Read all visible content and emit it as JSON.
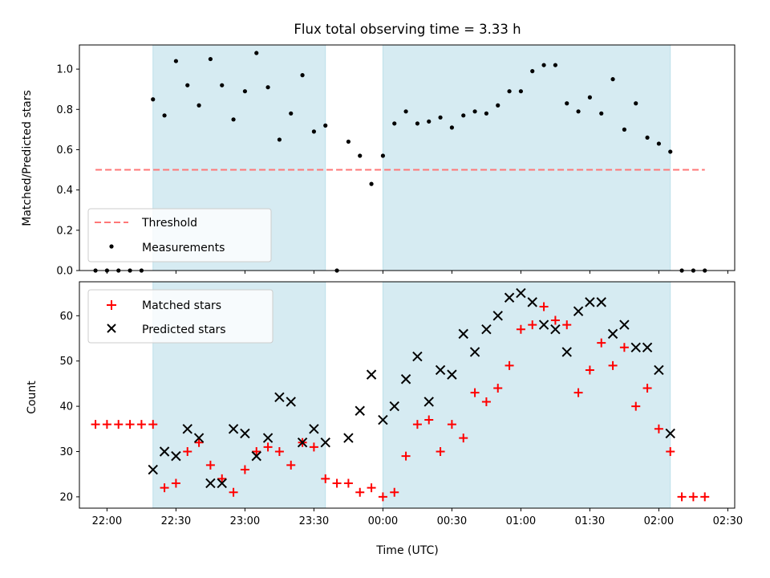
{
  "chart_data": [
    {
      "type": "scatter",
      "title": "Flux total observing time = 3.33 h",
      "xlabel": "",
      "ylabel": "Matched/Predicted stars",
      "ylim": [
        0,
        1.12
      ],
      "yticks": [
        0.0,
        0.2,
        0.4,
        0.6,
        0.8,
        1.0
      ],
      "ytick_labels": [
        "0.0",
        "0.2",
        "0.4",
        "0.6",
        "0.8",
        "1.0"
      ],
      "xlim": [
        "21:48",
        "02:33"
      ],
      "grid": false,
      "legend": "lower-left",
      "shaded_intervals": [
        [
          "22:20",
          "23:35"
        ],
        [
          "00:00",
          "02:05"
        ]
      ],
      "threshold": {
        "name": "Threshold",
        "value": 0.5,
        "x_range": [
          "21:55",
          "02:20"
        ],
        "color": "#ff7777"
      },
      "series": [
        {
          "name": "Measurements",
          "color": "#000000",
          "x": [
            "21:55",
            "22:00",
            "22:05",
            "22:10",
            "22:15",
            "22:20",
            "22:25",
            "22:30",
            "22:35",
            "22:40",
            "22:45",
            "22:50",
            "22:55",
            "23:00",
            "23:05",
            "23:10",
            "23:15",
            "23:20",
            "23:25",
            "23:30",
            "23:35",
            "23:40",
            "23:45",
            "23:50",
            "23:55",
            "00:00",
            "00:05",
            "00:10",
            "00:15",
            "00:20",
            "00:25",
            "00:30",
            "00:35",
            "00:40",
            "00:45",
            "00:50",
            "00:55",
            "01:00",
            "01:05",
            "01:10",
            "01:15",
            "01:20",
            "01:25",
            "01:30",
            "01:35",
            "01:40",
            "01:45",
            "01:50",
            "01:55",
            "02:00",
            "02:05",
            "02:10",
            "02:15",
            "02:20"
          ],
          "y": [
            0.0,
            0.0,
            0.0,
            0.0,
            0.0,
            0.85,
            0.77,
            1.04,
            0.92,
            0.82,
            1.05,
            0.92,
            0.75,
            0.89,
            1.08,
            0.91,
            0.65,
            0.78,
            0.97,
            0.69,
            0.72,
            0.0,
            0.64,
            0.57,
            0.43,
            0.57,
            0.73,
            0.79,
            0.73,
            0.74,
            0.76,
            0.71,
            0.77,
            0.79,
            0.78,
            0.82,
            0.89,
            0.89,
            0.99,
            1.02,
            1.02,
            0.83,
            0.79,
            0.86,
            0.78,
            0.95,
            0.7,
            0.83,
            0.66,
            0.63,
            0.59,
            0.0,
            0.0,
            0.0
          ]
        }
      ]
    },
    {
      "type": "scatter",
      "title": "",
      "xlabel": "Time (UTC)",
      "ylabel": "Count",
      "ylim": [
        17.5,
        67.5
      ],
      "yticks": [
        20,
        30,
        40,
        50,
        60
      ],
      "ytick_labels": [
        "20",
        "30",
        "40",
        "50",
        "60"
      ],
      "xlim": [
        "21:48",
        "02:33"
      ],
      "xticks": [
        "22:00",
        "22:30",
        "23:00",
        "23:30",
        "00:00",
        "00:30",
        "01:00",
        "01:30",
        "02:00",
        "02:30"
      ],
      "grid": false,
      "legend": "top-left",
      "shaded_intervals": [
        [
          "22:20",
          "23:35"
        ],
        [
          "00:00",
          "02:05"
        ]
      ],
      "series": [
        {
          "name": "Matched stars",
          "marker": "plus",
          "color": "#ff0000",
          "x": [
            "21:55",
            "22:00",
            "22:05",
            "22:10",
            "22:15",
            "22:20",
            "22:25",
            "22:30",
            "22:35",
            "22:40",
            "22:45",
            "22:50",
            "22:55",
            "23:00",
            "23:05",
            "23:10",
            "23:15",
            "23:20",
            "23:25",
            "23:30",
            "23:35",
            "23:40",
            "23:45",
            "23:50",
            "23:55",
            "00:00",
            "00:05",
            "00:10",
            "00:15",
            "00:20",
            "00:25",
            "00:30",
            "00:35",
            "00:40",
            "00:45",
            "00:50",
            "00:55",
            "01:00",
            "01:05",
            "01:10",
            "01:15",
            "01:20",
            "01:25",
            "01:30",
            "01:35",
            "01:40",
            "01:45",
            "01:50",
            "01:55",
            "02:00",
            "02:05",
            "02:10",
            "02:15",
            "02:20"
          ],
          "y": [
            36,
            36,
            36,
            36,
            36,
            36,
            22,
            23,
            30,
            32,
            27,
            24,
            21,
            26,
            30,
            31,
            30,
            27,
            32,
            31,
            24,
            23,
            23,
            21,
            22,
            20,
            21,
            29,
            36,
            37,
            30,
            36,
            33,
            43,
            41,
            44,
            49,
            57,
            58,
            62,
            59,
            58,
            43,
            48,
            54,
            49,
            53,
            40,
            44,
            35,
            30,
            20,
            20,
            20
          ]
        },
        {
          "name": "Predicted stars",
          "marker": "x",
          "color": "#000000",
          "x": [
            "22:20",
            "22:25",
            "22:30",
            "22:35",
            "22:40",
            "22:45",
            "22:50",
            "22:55",
            "23:00",
            "23:05",
            "23:10",
            "23:15",
            "23:20",
            "23:25",
            "23:30",
            "23:35",
            "23:45",
            "23:50",
            "23:55",
            "00:00",
            "00:05",
            "00:10",
            "00:15",
            "00:20",
            "00:25",
            "00:30",
            "00:35",
            "00:40",
            "00:45",
            "00:50",
            "00:55",
            "01:00",
            "01:05",
            "01:10",
            "01:15",
            "01:20",
            "01:25",
            "01:30",
            "01:35",
            "01:40",
            "01:45",
            "01:50",
            "01:55",
            "02:00",
            "02:05"
          ],
          "y": [
            26,
            30,
            29,
            35,
            33,
            23,
            23,
            35,
            34,
            29,
            33,
            42,
            41,
            32,
            35,
            32,
            33,
            39,
            47,
            37,
            40,
            46,
            51,
            41,
            48,
            47,
            56,
            52,
            57,
            60,
            64,
            65,
            63,
            58,
            57,
            52,
            61,
            63,
            63,
            56,
            58,
            53,
            53,
            48,
            34
          ]
        }
      ]
    }
  ]
}
